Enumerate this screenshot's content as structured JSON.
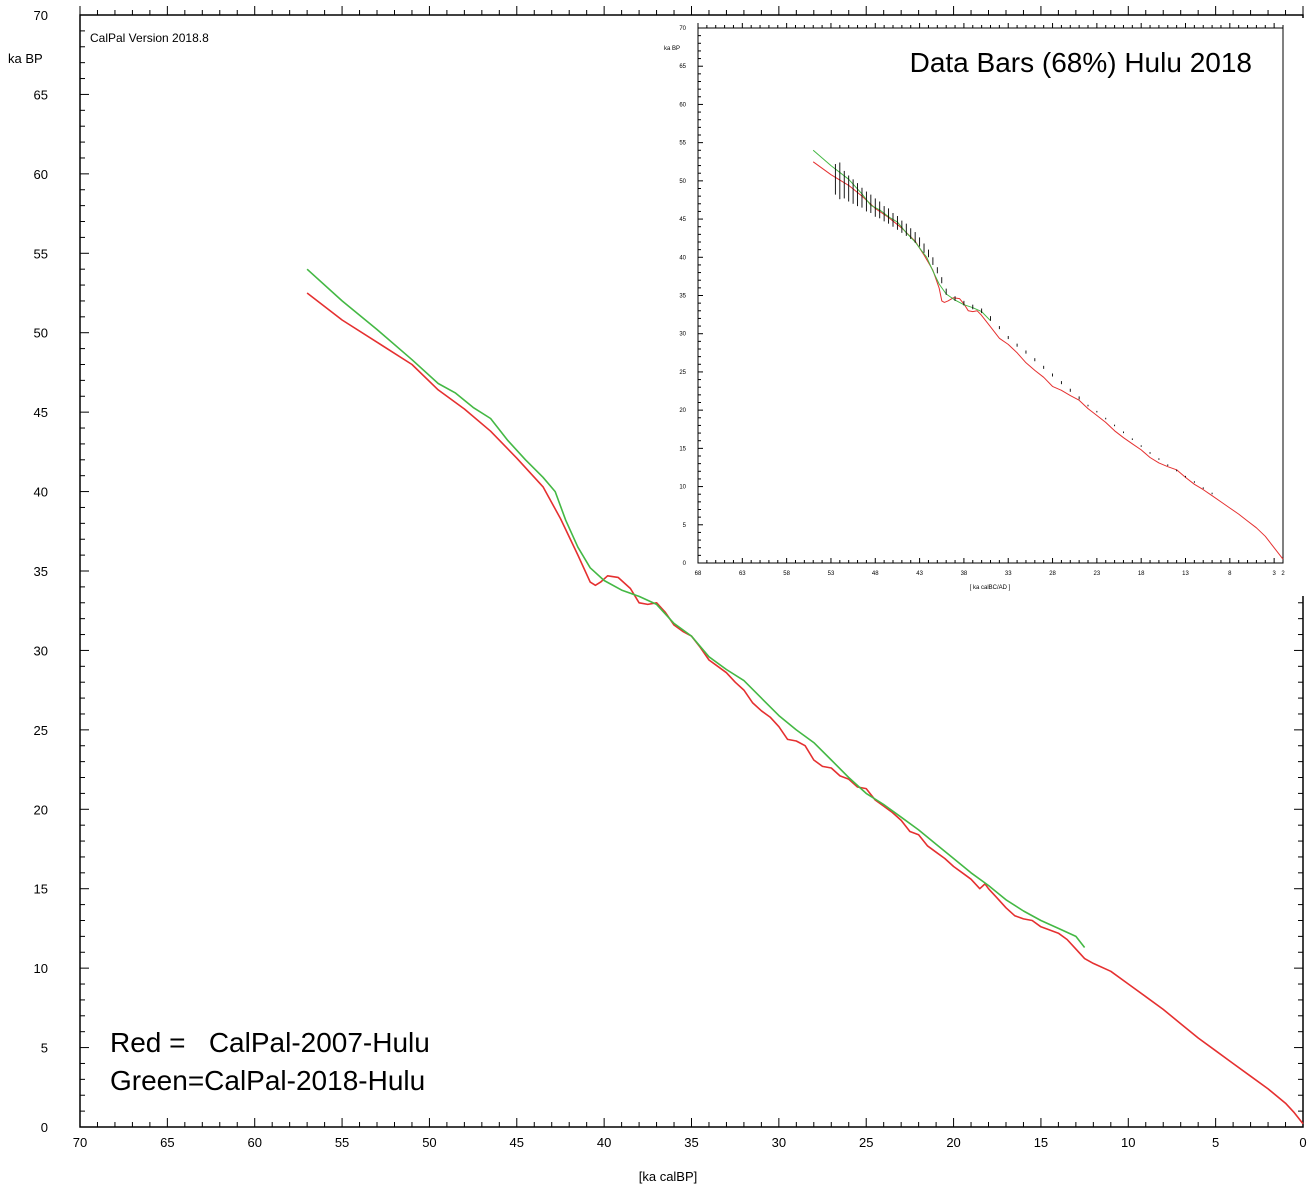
{
  "chart_data": [
    {
      "type": "line",
      "version": "CalPal Version 2018.8",
      "ylabel": "ka BP",
      "xlabel": "[ka calBP]",
      "xlim": [
        70,
        0
      ],
      "ylim": [
        0,
        70
      ],
      "x_ticks": [
        70,
        65,
        60,
        55,
        50,
        45,
        40,
        35,
        30,
        25,
        20,
        15,
        10,
        5,
        0
      ],
      "y_ticks": [
        0,
        5,
        10,
        15,
        20,
        25,
        30,
        35,
        40,
        45,
        50,
        55,
        60,
        65,
        70
      ],
      "grid": false,
      "legend_lines": [
        "Red =   CalPal-2007-Hulu",
        "Green=CalPal-2018-Hulu"
      ],
      "series": [
        {
          "color": "#e53030",
          "x": [
            57,
            55,
            53,
            51,
            49.5,
            48,
            46.5,
            45,
            43.5,
            42.5,
            41.5,
            40.8,
            40.5,
            40.2,
            39.8,
            39.2,
            38.5,
            38,
            37.5,
            37,
            36.5,
            36,
            35.5,
            35,
            34.5,
            34,
            33.5,
            33,
            32.5,
            32,
            31.5,
            31,
            30.5,
            30,
            29.5,
            29,
            28.5,
            28,
            27.5,
            27,
            26.5,
            26,
            25.5,
            25,
            24.5,
            24,
            23.5,
            23,
            22.5,
            22,
            21.5,
            21,
            20.5,
            20,
            19.5,
            19,
            18.5,
            18.2,
            18,
            17.5,
            17,
            16.5,
            16,
            15.5,
            15,
            14.5,
            14,
            13.5,
            13,
            12.5,
            12,
            11,
            10,
            9,
            8,
            7,
            6,
            5,
            4,
            3,
            2,
            1,
            0.5,
            0
          ],
          "y": [
            52.5,
            50.8,
            49.4,
            48,
            46.4,
            45.2,
            43.8,
            42.1,
            40.3,
            38.3,
            36,
            34.3,
            34.1,
            34.3,
            34.7,
            34.6,
            33.9,
            33.0,
            32.9,
            33.0,
            32.4,
            31.6,
            31.2,
            30.9,
            30.2,
            29.4,
            29.0,
            28.6,
            28.0,
            27.5,
            26.7,
            26.2,
            25.8,
            25.2,
            24.4,
            24.3,
            24.0,
            23.1,
            22.7,
            22.6,
            22.1,
            21.9,
            21.4,
            21.3,
            20.6,
            20.2,
            19.8,
            19.3,
            18.6,
            18.4,
            17.7,
            17.3,
            16.9,
            16.4,
            16.0,
            15.6,
            15.0,
            15.3,
            15.0,
            14.4,
            13.8,
            13.3,
            13.1,
            13.0,
            12.6,
            12.4,
            12.2,
            11.8,
            11.2,
            10.6,
            10.3,
            9.8,
            9.0,
            8.2,
            7.4,
            6.5,
            5.6,
            4.8,
            4.0,
            3.2,
            2.4,
            1.5,
            0.9,
            0.2
          ]
        },
        {
          "color": "#44b844",
          "x": [
            57,
            55,
            53,
            51,
            49.5,
            48.5,
            47.5,
            46.5,
            45.5,
            44.5,
            43.5,
            42.8,
            42.2,
            41.5,
            40.8,
            40,
            39,
            38,
            37,
            36,
            35,
            34,
            33,
            32,
            31,
            30,
            29,
            28,
            27,
            26,
            25,
            24,
            23,
            22,
            21,
            20,
            19,
            18,
            17,
            16,
            15,
            14,
            13,
            12.5
          ],
          "y": [
            54,
            52,
            50.2,
            48.3,
            46.8,
            46.2,
            45.3,
            44.6,
            43.2,
            42,
            40.9,
            40,
            38.2,
            36.5,
            35.2,
            34.4,
            33.8,
            33.4,
            32.9,
            31.7,
            30.9,
            29.6,
            28.8,
            28.1,
            27.0,
            25.9,
            25.0,
            24.2,
            23.1,
            22.0,
            21.0,
            20.3,
            19.5,
            18.7,
            17.8,
            16.9,
            16.0,
            15.2,
            14.3,
            13.6,
            13.0,
            12.5,
            12.0,
            11.3
          ]
        }
      ]
    },
    {
      "type": "line",
      "title": "Data Bars (68%) Hulu 2018",
      "ylabel": "ka BP",
      "xlabel": "[ ka calBC/AD ]",
      "xlim": [
        68,
        2
      ],
      "ylim": [
        0,
        70
      ],
      "x_ticks": [
        68,
        63,
        58,
        53,
        48,
        43,
        38,
        33,
        28,
        23,
        18,
        13,
        8,
        3,
        2
      ],
      "y_ticks": [
        0,
        5,
        10,
        15,
        20,
        25,
        30,
        35,
        40,
        45,
        50,
        55,
        60,
        65,
        70
      ],
      "grid": false,
      "series": [
        {
          "color": "#e53030",
          "x": [
            55,
            53,
            51,
            49.5,
            48,
            46.5,
            45,
            43.5,
            42.5,
            41.5,
            40.8,
            40.5,
            40.2,
            39.8,
            39.2,
            38.5,
            38,
            37.5,
            37,
            36.5,
            36,
            35,
            34,
            33,
            32,
            31,
            30,
            29,
            28,
            27,
            26,
            25,
            24,
            23,
            22,
            21,
            20,
            19,
            18,
            17,
            16,
            15,
            14,
            13,
            12,
            11,
            10,
            9,
            8,
            7,
            6,
            5,
            4,
            3,
            2
          ],
          "y": [
            52.5,
            50.8,
            49.4,
            48,
            46.4,
            45.2,
            43.8,
            42.1,
            40.3,
            38.3,
            36,
            34.3,
            34.1,
            34.3,
            34.7,
            34.6,
            33.9,
            33.0,
            32.9,
            33.0,
            32.4,
            30.9,
            29.4,
            28.6,
            27.5,
            26.2,
            25.2,
            24.3,
            23.1,
            22.6,
            21.9,
            21.3,
            20.2,
            19.3,
            18.4,
            17.3,
            16.4,
            15.6,
            14.8,
            13.8,
            13.1,
            12.6,
            12.2,
            11.2,
            10.3,
            9.6,
            8.8,
            8.0,
            7.2,
            6.4,
            5.5,
            4.6,
            3.5,
            2.0,
            0.5
          ]
        },
        {
          "color": "#44b844",
          "x": [
            55,
            53,
            51,
            49.5,
            48.5,
            47.5,
            46.5,
            45.5,
            44.5,
            43.5,
            42.8,
            42.2,
            41.5,
            40.8,
            40,
            39,
            38,
            37,
            36,
            35
          ],
          "y": [
            54,
            52,
            50.2,
            48.3,
            46.8,
            46.2,
            45.3,
            44.6,
            43.2,
            42,
            40.9,
            40,
            38.2,
            36.5,
            35.2,
            34.4,
            33.8,
            33.4,
            32.9,
            31.7
          ]
        },
        {
          "color": "#000000",
          "type": "errorbars",
          "x": [
            52.5,
            52,
            51.5,
            51,
            50.5,
            50,
            49.5,
            49,
            48.5,
            48,
            47.5,
            47,
            46.5,
            46,
            45.5,
            45,
            44.5,
            44,
            43.5,
            43,
            42.5,
            42,
            41.5,
            41,
            40.5,
            40,
            39,
            38,
            37,
            36,
            35,
            34,
            33,
            32,
            31,
            30,
            29,
            28,
            27,
            26,
            25,
            24,
            23,
            22,
            21,
            20,
            19,
            18,
            17,
            16,
            15,
            14,
            13,
            12,
            11,
            10
          ],
          "y": [
            50.2,
            50.0,
            49.5,
            49.0,
            48.6,
            48.2,
            47.8,
            47.3,
            47.0,
            46.5,
            46.2,
            45.7,
            45.4,
            44.9,
            44.5,
            44.0,
            43.6,
            43.1,
            42.6,
            42.0,
            41.2,
            40.5,
            39.5,
            38.3,
            37.0,
            35.5,
            34.6,
            34.0,
            33.5,
            33.0,
            32.0,
            30.8,
            29.5,
            28.5,
            27.6,
            26.6,
            25.6,
            24.6,
            23.6,
            22.6,
            21.6,
            20.6,
            19.8,
            18.9,
            18.0,
            17.1,
            16.2,
            15.3,
            14.4,
            13.6,
            12.8,
            12.1,
            11.3,
            10.6,
            9.8,
            9.1
          ],
          "err": [
            2.0,
            2.4,
            1.8,
            1.7,
            1.6,
            1.5,
            1.3,
            1.3,
            1.2,
            1.2,
            1.1,
            1.0,
            1.0,
            0.9,
            0.9,
            0.8,
            0.8,
            0.7,
            0.7,
            0.6,
            0.6,
            0.5,
            0.5,
            0.4,
            0.4,
            0.4,
            0.3,
            0.3,
            0.3,
            0.3,
            0.3,
            0.2,
            0.2,
            0.2,
            0.2,
            0.2,
            0.2,
            0.2,
            0.2,
            0.2,
            0.2,
            0.1,
            0.1,
            0.1,
            0.1,
            0.1,
            0.1,
            0.1,
            0.1,
            0.1,
            0.1,
            0.1,
            0.1,
            0.1,
            0.1,
            0.1
          ]
        }
      ]
    }
  ]
}
